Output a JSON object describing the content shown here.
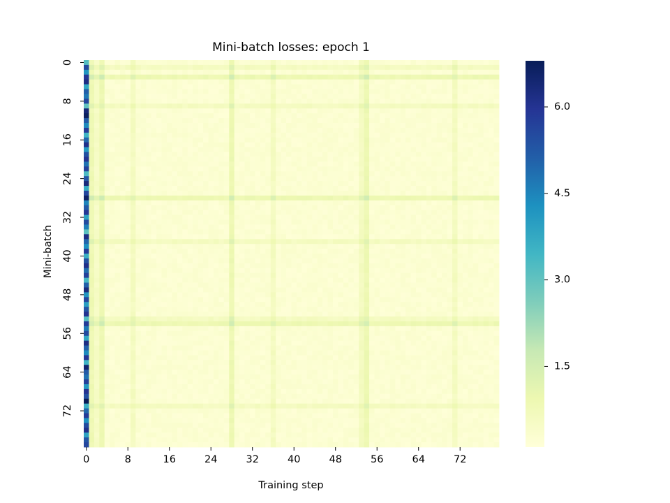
{
  "chart_data": {
    "type": "heatmap",
    "title": "Mini-batch losses: epoch 1",
    "xlabel": "Training step",
    "ylabel": "Mini-batch",
    "rows": 80,
    "cols": 80,
    "x_ticks": [
      "0",
      "8",
      "16",
      "24",
      "32",
      "40",
      "48",
      "56",
      "64",
      "72"
    ],
    "y_ticks": [
      "0",
      "8",
      "16",
      "24",
      "32",
      "40",
      "48",
      "56",
      "64",
      "72"
    ],
    "colorbar": {
      "ticks": [
        "1.5",
        "3.0",
        "4.5",
        "6.0"
      ],
      "tick_values": [
        1.5,
        3.0,
        4.5,
        6.0
      ],
      "range": [
        0.1,
        6.8
      ],
      "colormap": "YlGnBu"
    },
    "first_step_losses": [
      3.2,
      5.5,
      4.2,
      5.9,
      6.2,
      3.8,
      5.1,
      4.7,
      5.6,
      3.0,
      6.4,
      6.7,
      5.2,
      4.4,
      5.8,
      3.5,
      5.0,
      6.1,
      4.1,
      5.4,
      6.0,
      4.8,
      5.7,
      3.3,
      5.3,
      6.3,
      3.7,
      5.6,
      6.6,
      4.5,
      5.2,
      5.9,
      3.9,
      5.5,
      4.6,
      3.1,
      6.2,
      5.0,
      4.3,
      5.8,
      3.6,
      5.4,
      6.1,
      4.9,
      5.7,
      3.4,
      5.1,
      6.3,
      4.2,
      5.6,
      4.0,
      5.3,
      6.0,
      3.2,
      5.8,
      4.7,
      5.5,
      3.8,
      6.2,
      5.1,
      4.4,
      5.9,
      3.5,
      6.5,
      5.2,
      4.8,
      5.7,
      4.1,
      6.0,
      5.4,
      6.8,
      3.6,
      5.0,
      5.8,
      4.3,
      5.5,
      6.1,
      3.9,
      5.3,
      5.6
    ],
    "high_loss_steps": [
      3,
      28,
      54
    ],
    "high_loss_batches": [
      3,
      28,
      54
    ],
    "elevated_steps": [
      1,
      9,
      36,
      53,
      71
    ],
    "elevated_batches": [
      1,
      9,
      37,
      53,
      71
    ]
  }
}
